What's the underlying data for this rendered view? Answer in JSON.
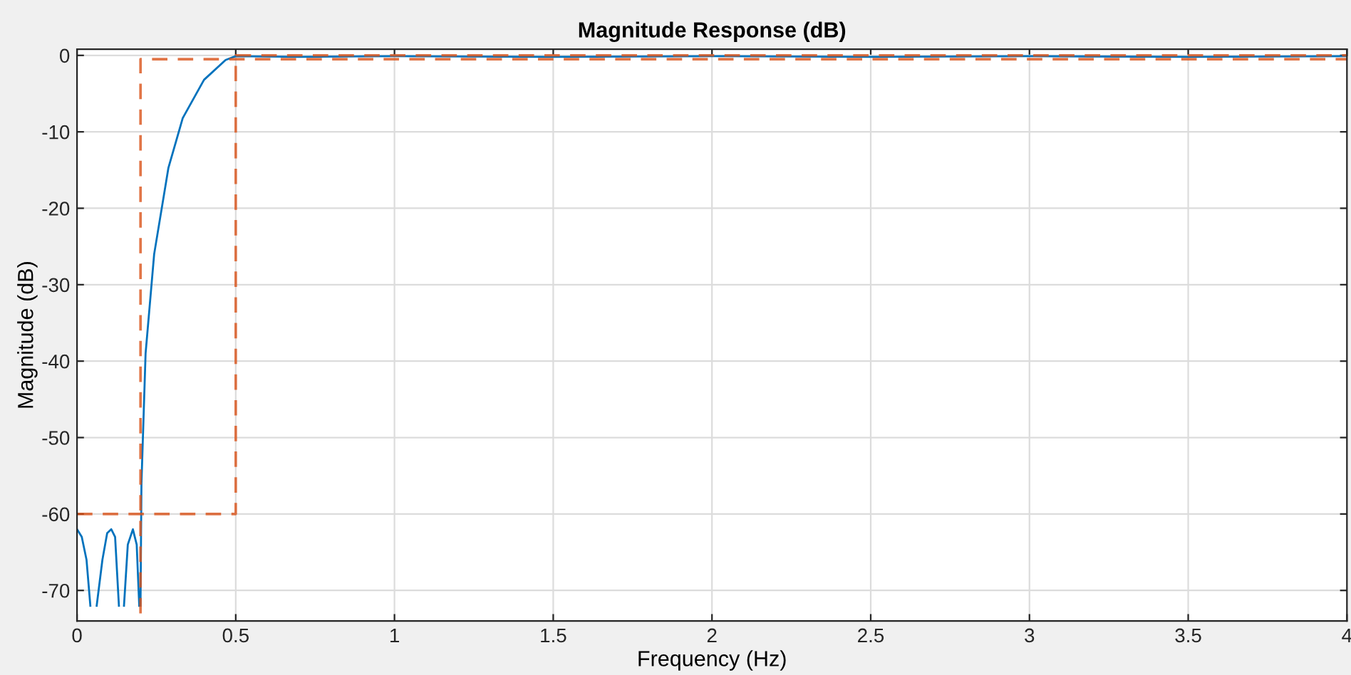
{
  "chart_data": {
    "type": "line",
    "title": "Magnitude Response (dB)",
    "xlabel": "Frequency (Hz)",
    "ylabel": "Magnitude (dB)",
    "xlim": [
      0,
      4
    ],
    "ylim": [
      -74,
      0.8
    ],
    "xticks": [
      0,
      0.5,
      1,
      1.5,
      2,
      2.5,
      3,
      3.5,
      4
    ],
    "yticks": [
      -70,
      -60,
      -50,
      -40,
      -30,
      -20,
      -10,
      0
    ],
    "grid": true,
    "series": [
      {
        "color": "#0072bd",
        "line_style": "solid",
        "x": [
          0,
          0.015,
          0.03,
          0.042,
          0.045,
          0.062,
          0.08,
          0.095,
          0.108,
          0.12,
          0.132,
          0.135,
          0.148,
          0.16,
          0.176,
          0.188,
          0.196,
          0.198,
          0.2,
          0.203,
          0.216,
          0.243,
          0.288,
          0.333,
          0.4,
          0.468,
          0.5,
          0.7,
          1,
          1.5,
          2,
          2.5,
          3,
          3.5,
          4
        ],
        "values": [
          -62,
          -63,
          -66,
          -72,
          null,
          -72,
          -66,
          -62.5,
          -62,
          -63,
          -72,
          null,
          -72,
          -64,
          -62,
          -64,
          -72,
          null,
          -72,
          -56,
          -39,
          -26,
          -14.7,
          -8.2,
          -3.2,
          -0.6,
          -0.1,
          -0.2,
          -0.1,
          -0.2,
          -0.1,
          -0.2,
          -0.1,
          -0.2,
          -0.1
        ]
      },
      {
        "color": "#d95319",
        "line_style": "dashed",
        "x": [
          0,
          0.5,
          0.5,
          4
        ],
        "values": [
          -60,
          -60,
          0,
          0
        ]
      },
      {
        "color": "#d95319",
        "line_style": "dashed",
        "x": [
          0.2,
          0.2,
          4
        ],
        "values": [
          -73,
          -0.5,
          -0.5
        ]
      }
    ]
  }
}
